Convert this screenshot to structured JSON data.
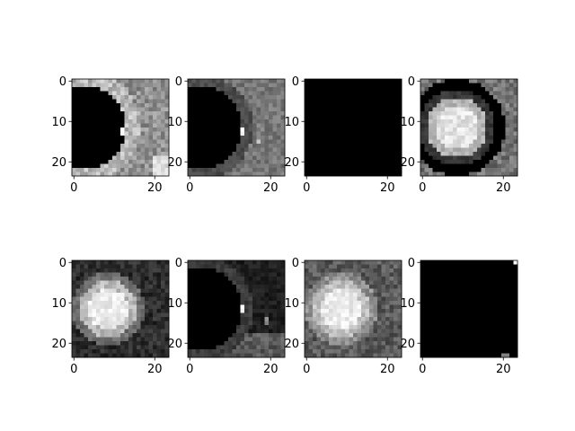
{
  "chart_data": [
    {
      "type": "heatmap",
      "panel": "r1c1",
      "pattern": "dark_circle_left",
      "colormap": "gray",
      "grid": false,
      "xlim": [
        0,
        23
      ],
      "ylim": [
        23,
        0
      ],
      "xticks": [
        {
          "value": 0,
          "label": "0"
        },
        {
          "value": 20,
          "label": "20"
        }
      ],
      "yticks": [
        {
          "value": 0,
          "label": "0"
        },
        {
          "value": 10,
          "label": "10"
        },
        {
          "value": 20,
          "label": "20"
        }
      ]
    },
    {
      "type": "heatmap",
      "panel": "r1c2",
      "pattern": "dark_circle_left_dim",
      "colormap": "gray",
      "grid": false,
      "xlim": [
        0,
        23
      ],
      "ylim": [
        23,
        0
      ],
      "xticks": [
        {
          "value": 0,
          "label": "0"
        },
        {
          "value": 20,
          "label": "20"
        }
      ],
      "yticks": [
        {
          "value": 0,
          "label": "0"
        },
        {
          "value": 10,
          "label": "10"
        },
        {
          "value": 20,
          "label": "20"
        }
      ]
    },
    {
      "type": "heatmap",
      "panel": "r1c3",
      "pattern": "all_black",
      "colormap": "gray",
      "grid": false,
      "xlim": [
        0,
        23
      ],
      "ylim": [
        23,
        0
      ],
      "xticks": [
        {
          "value": 0,
          "label": "0"
        },
        {
          "value": 20,
          "label": "20"
        }
      ],
      "yticks": [
        {
          "value": 0,
          "label": "0"
        },
        {
          "value": 10,
          "label": "10"
        },
        {
          "value": 20,
          "label": "20"
        }
      ]
    },
    {
      "type": "heatmap",
      "panel": "r1c4",
      "pattern": "bright_disc_dark_ring",
      "colormap": "gray",
      "grid": false,
      "xlim": [
        0,
        23
      ],
      "ylim": [
        23,
        0
      ],
      "xticks": [
        {
          "value": 0,
          "label": "0"
        },
        {
          "value": 20,
          "label": "20"
        }
      ],
      "yticks": [
        {
          "value": 0,
          "label": "0"
        },
        {
          "value": 10,
          "label": "10"
        },
        {
          "value": 20,
          "label": "20"
        }
      ]
    },
    {
      "type": "heatmap",
      "panel": "r2c1",
      "pattern": "bright_disc",
      "colormap": "gray",
      "grid": false,
      "xlim": [
        0,
        23
      ],
      "ylim": [
        23,
        0
      ],
      "xticks": [
        {
          "value": 0,
          "label": "0"
        },
        {
          "value": 20,
          "label": "20"
        }
      ],
      "yticks": [
        {
          "value": 0,
          "label": "0"
        },
        {
          "value": 10,
          "label": "10"
        },
        {
          "value": 20,
          "label": "20"
        }
      ]
    },
    {
      "type": "heatmap",
      "panel": "r2c2",
      "pattern": "dark_mostly_ring",
      "colormap": "gray",
      "grid": false,
      "xlim": [
        0,
        23
      ],
      "ylim": [
        23,
        0
      ],
      "xticks": [
        {
          "value": 0,
          "label": "0"
        },
        {
          "value": 20,
          "label": "20"
        }
      ],
      "yticks": [
        {
          "value": 0,
          "label": "0"
        },
        {
          "value": 10,
          "label": "10"
        },
        {
          "value": 20,
          "label": "20"
        }
      ]
    },
    {
      "type": "heatmap",
      "panel": "r2c3",
      "pattern": "bright_disc_gray_bg",
      "colormap": "gray",
      "grid": false,
      "xlim": [
        0,
        23
      ],
      "ylim": [
        23,
        0
      ],
      "xticks": [
        {
          "value": 0,
          "label": "0"
        },
        {
          "value": 20,
          "label": "20"
        }
      ],
      "yticks": [
        {
          "value": 0,
          "label": "0"
        },
        {
          "value": 10,
          "label": "10"
        },
        {
          "value": 20,
          "label": "20"
        }
      ]
    },
    {
      "type": "heatmap",
      "panel": "r2c4",
      "pattern": "all_black_specks",
      "colormap": "gray",
      "grid": false,
      "xlim": [
        0,
        23
      ],
      "ylim": [
        23,
        0
      ],
      "xticks": [
        {
          "value": 0,
          "label": "0"
        },
        {
          "value": 20,
          "label": "20"
        }
      ],
      "yticks": [
        {
          "value": 0,
          "label": "0"
        },
        {
          "value": 10,
          "label": "10"
        },
        {
          "value": 20,
          "label": "20"
        }
      ]
    }
  ]
}
